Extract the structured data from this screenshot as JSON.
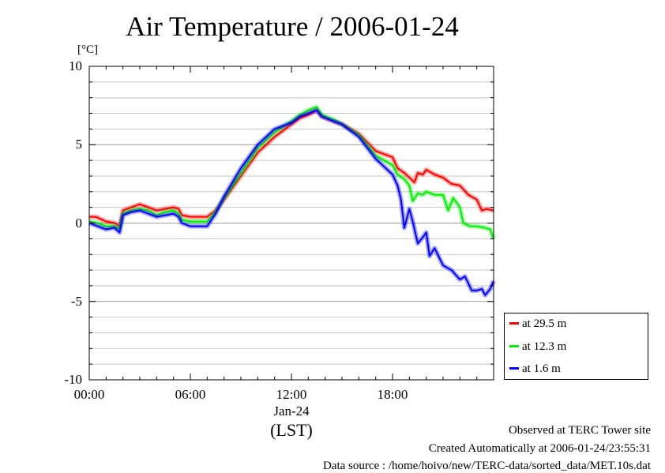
{
  "chart_data": {
    "type": "line",
    "title": "Air Temperature / 2006-01-24",
    "yunit": "[°C]",
    "ylim": [
      -10,
      10
    ],
    "yticks": [
      "10",
      "5",
      "0",
      "-5",
      "-10"
    ],
    "xlim": [
      0,
      24
    ],
    "xticks": [
      {
        "x": 0,
        "label": "00:00"
      },
      {
        "x": 6,
        "label": "06:00"
      },
      {
        "x": 12,
        "label": "12:00",
        "sublabel": "Jan-24"
      },
      {
        "x": 18,
        "label": "18:00"
      }
    ],
    "xlabel": "(LST)",
    "grid": true,
    "legend_position": "right-bottom",
    "series": [
      {
        "name": "at 29.5 m",
        "color": "#ff0000",
        "points": [
          [
            0,
            0.4
          ],
          [
            0.4,
            0.4
          ],
          [
            1,
            0.1
          ],
          [
            1.5,
            0
          ],
          [
            1.8,
            -0.2
          ],
          [
            2,
            0.8
          ],
          [
            2.5,
            1
          ],
          [
            3,
            1.2
          ],
          [
            3.5,
            1
          ],
          [
            4,
            0.8
          ],
          [
            4.5,
            0.9
          ],
          [
            5,
            1
          ],
          [
            5.3,
            0.9
          ],
          [
            5.5,
            0.5
          ],
          [
            6,
            0.4
          ],
          [
            6.5,
            0.4
          ],
          [
            7,
            0.4
          ],
          [
            7.5,
            0.8
          ],
          [
            8,
            1.5
          ],
          [
            9,
            3
          ],
          [
            10,
            4.5
          ],
          [
            11,
            5.5
          ],
          [
            12,
            6.3
          ],
          [
            12.5,
            6.7
          ],
          [
            13,
            6.9
          ],
          [
            13.5,
            7.2
          ],
          [
            13.8,
            6.8
          ],
          [
            14.5,
            6.5
          ],
          [
            15,
            6.3
          ],
          [
            16,
            5.7
          ],
          [
            17,
            4.6
          ],
          [
            17.5,
            4.4
          ],
          [
            18,
            4.2
          ],
          [
            18.3,
            3.5
          ],
          [
            18.7,
            3.2
          ],
          [
            19,
            2.9
          ],
          [
            19.3,
            2.6
          ],
          [
            19.5,
            3.2
          ],
          [
            19.8,
            3.1
          ],
          [
            20,
            3.4
          ],
          [
            20.5,
            3.1
          ],
          [
            21,
            2.9
          ],
          [
            21.5,
            2.5
          ],
          [
            22,
            2.4
          ],
          [
            22.5,
            1.8
          ],
          [
            23,
            1.5
          ],
          [
            23.3,
            0.8
          ],
          [
            23.6,
            0.9
          ],
          [
            24,
            0.8
          ]
        ]
      },
      {
        "name": "at 12.3 m",
        "color": "#00ee00",
        "points": [
          [
            0,
            0.1
          ],
          [
            0.5,
            0
          ],
          [
            1,
            -0.2
          ],
          [
            1.5,
            -0.2
          ],
          [
            1.8,
            -0.4
          ],
          [
            2,
            0.6
          ],
          [
            2.5,
            0.8
          ],
          [
            3,
            0.9
          ],
          [
            3.5,
            0.8
          ],
          [
            4,
            0.5
          ],
          [
            4.5,
            0.7
          ],
          [
            5,
            0.8
          ],
          [
            5.3,
            0.6
          ],
          [
            5.5,
            0.2
          ],
          [
            6,
            0.1
          ],
          [
            6.5,
            0.1
          ],
          [
            7,
            0.1
          ],
          [
            7.5,
            0.7
          ],
          [
            8,
            1.6
          ],
          [
            9,
            3.2
          ],
          [
            10,
            4.8
          ],
          [
            11,
            5.8
          ],
          [
            12,
            6.5
          ],
          [
            12.5,
            6.9
          ],
          [
            13,
            7.2
          ],
          [
            13.5,
            7.4
          ],
          [
            13.8,
            6.9
          ],
          [
            14.5,
            6.6
          ],
          [
            15,
            6.3
          ],
          [
            16,
            5.6
          ],
          [
            17,
            4.3
          ],
          [
            17.5,
            4
          ],
          [
            18,
            3.7
          ],
          [
            18.3,
            3.1
          ],
          [
            18.7,
            2.8
          ],
          [
            19,
            2.4
          ],
          [
            19.2,
            1.4
          ],
          [
            19.5,
            1.9
          ],
          [
            19.8,
            1.8
          ],
          [
            20,
            2
          ],
          [
            20.5,
            1.8
          ],
          [
            21,
            1.8
          ],
          [
            21.3,
            0.8
          ],
          [
            21.6,
            1.6
          ],
          [
            22,
            1
          ],
          [
            22.2,
            0
          ],
          [
            22.6,
            -0.2
          ],
          [
            23,
            -0.2
          ],
          [
            23.5,
            -0.3
          ],
          [
            23.8,
            -0.4
          ],
          [
            24,
            -1
          ]
        ]
      },
      {
        "name": "at 1.6 m",
        "color": "#0000ff",
        "points": [
          [
            0,
            0
          ],
          [
            0.5,
            -0.2
          ],
          [
            1,
            -0.4
          ],
          [
            1.5,
            -0.3
          ],
          [
            1.8,
            -0.6
          ],
          [
            2,
            0.5
          ],
          [
            2.5,
            0.7
          ],
          [
            3,
            0.8
          ],
          [
            3.5,
            0.6
          ],
          [
            4,
            0.4
          ],
          [
            4.5,
            0.5
          ],
          [
            5,
            0.6
          ],
          [
            5.3,
            0.4
          ],
          [
            5.5,
            0
          ],
          [
            6,
            -0.2
          ],
          [
            6.5,
            -0.2
          ],
          [
            7,
            -0.2
          ],
          [
            7.5,
            0.6
          ],
          [
            8,
            1.7
          ],
          [
            9,
            3.5
          ],
          [
            10,
            5
          ],
          [
            11,
            6
          ],
          [
            12,
            6.4
          ],
          [
            12.5,
            6.8
          ],
          [
            13,
            7
          ],
          [
            13.5,
            7.2
          ],
          [
            13.8,
            6.8
          ],
          [
            14.5,
            6.5
          ],
          [
            15,
            6.3
          ],
          [
            16,
            5.5
          ],
          [
            17,
            4.1
          ],
          [
            17.5,
            3.6
          ],
          [
            18,
            3.1
          ],
          [
            18.3,
            2.4
          ],
          [
            18.5,
            1.5
          ],
          [
            18.7,
            -0.3
          ],
          [
            19,
            0.9
          ],
          [
            19.2,
            0.1
          ],
          [
            19.5,
            -1.3
          ],
          [
            19.8,
            -0.9
          ],
          [
            20,
            -0.6
          ],
          [
            20.2,
            -2.1
          ],
          [
            20.5,
            -1.6
          ],
          [
            21,
            -2.7
          ],
          [
            21.5,
            -3
          ],
          [
            22,
            -3.6
          ],
          [
            22.3,
            -3.4
          ],
          [
            22.7,
            -4.3
          ],
          [
            23,
            -4.3
          ],
          [
            23.3,
            -4.2
          ],
          [
            23.5,
            -4.6
          ],
          [
            23.8,
            -4.2
          ],
          [
            24,
            -3.7
          ]
        ]
      }
    ]
  },
  "footer": {
    "line1": "Observed at TERC Tower site",
    "line2": "Created Automatically at 2006-01-24/23:55:31",
    "line3": "Data source : /home/hoivo/new/TERC-data/sorted_data/MET.10s.dat"
  }
}
